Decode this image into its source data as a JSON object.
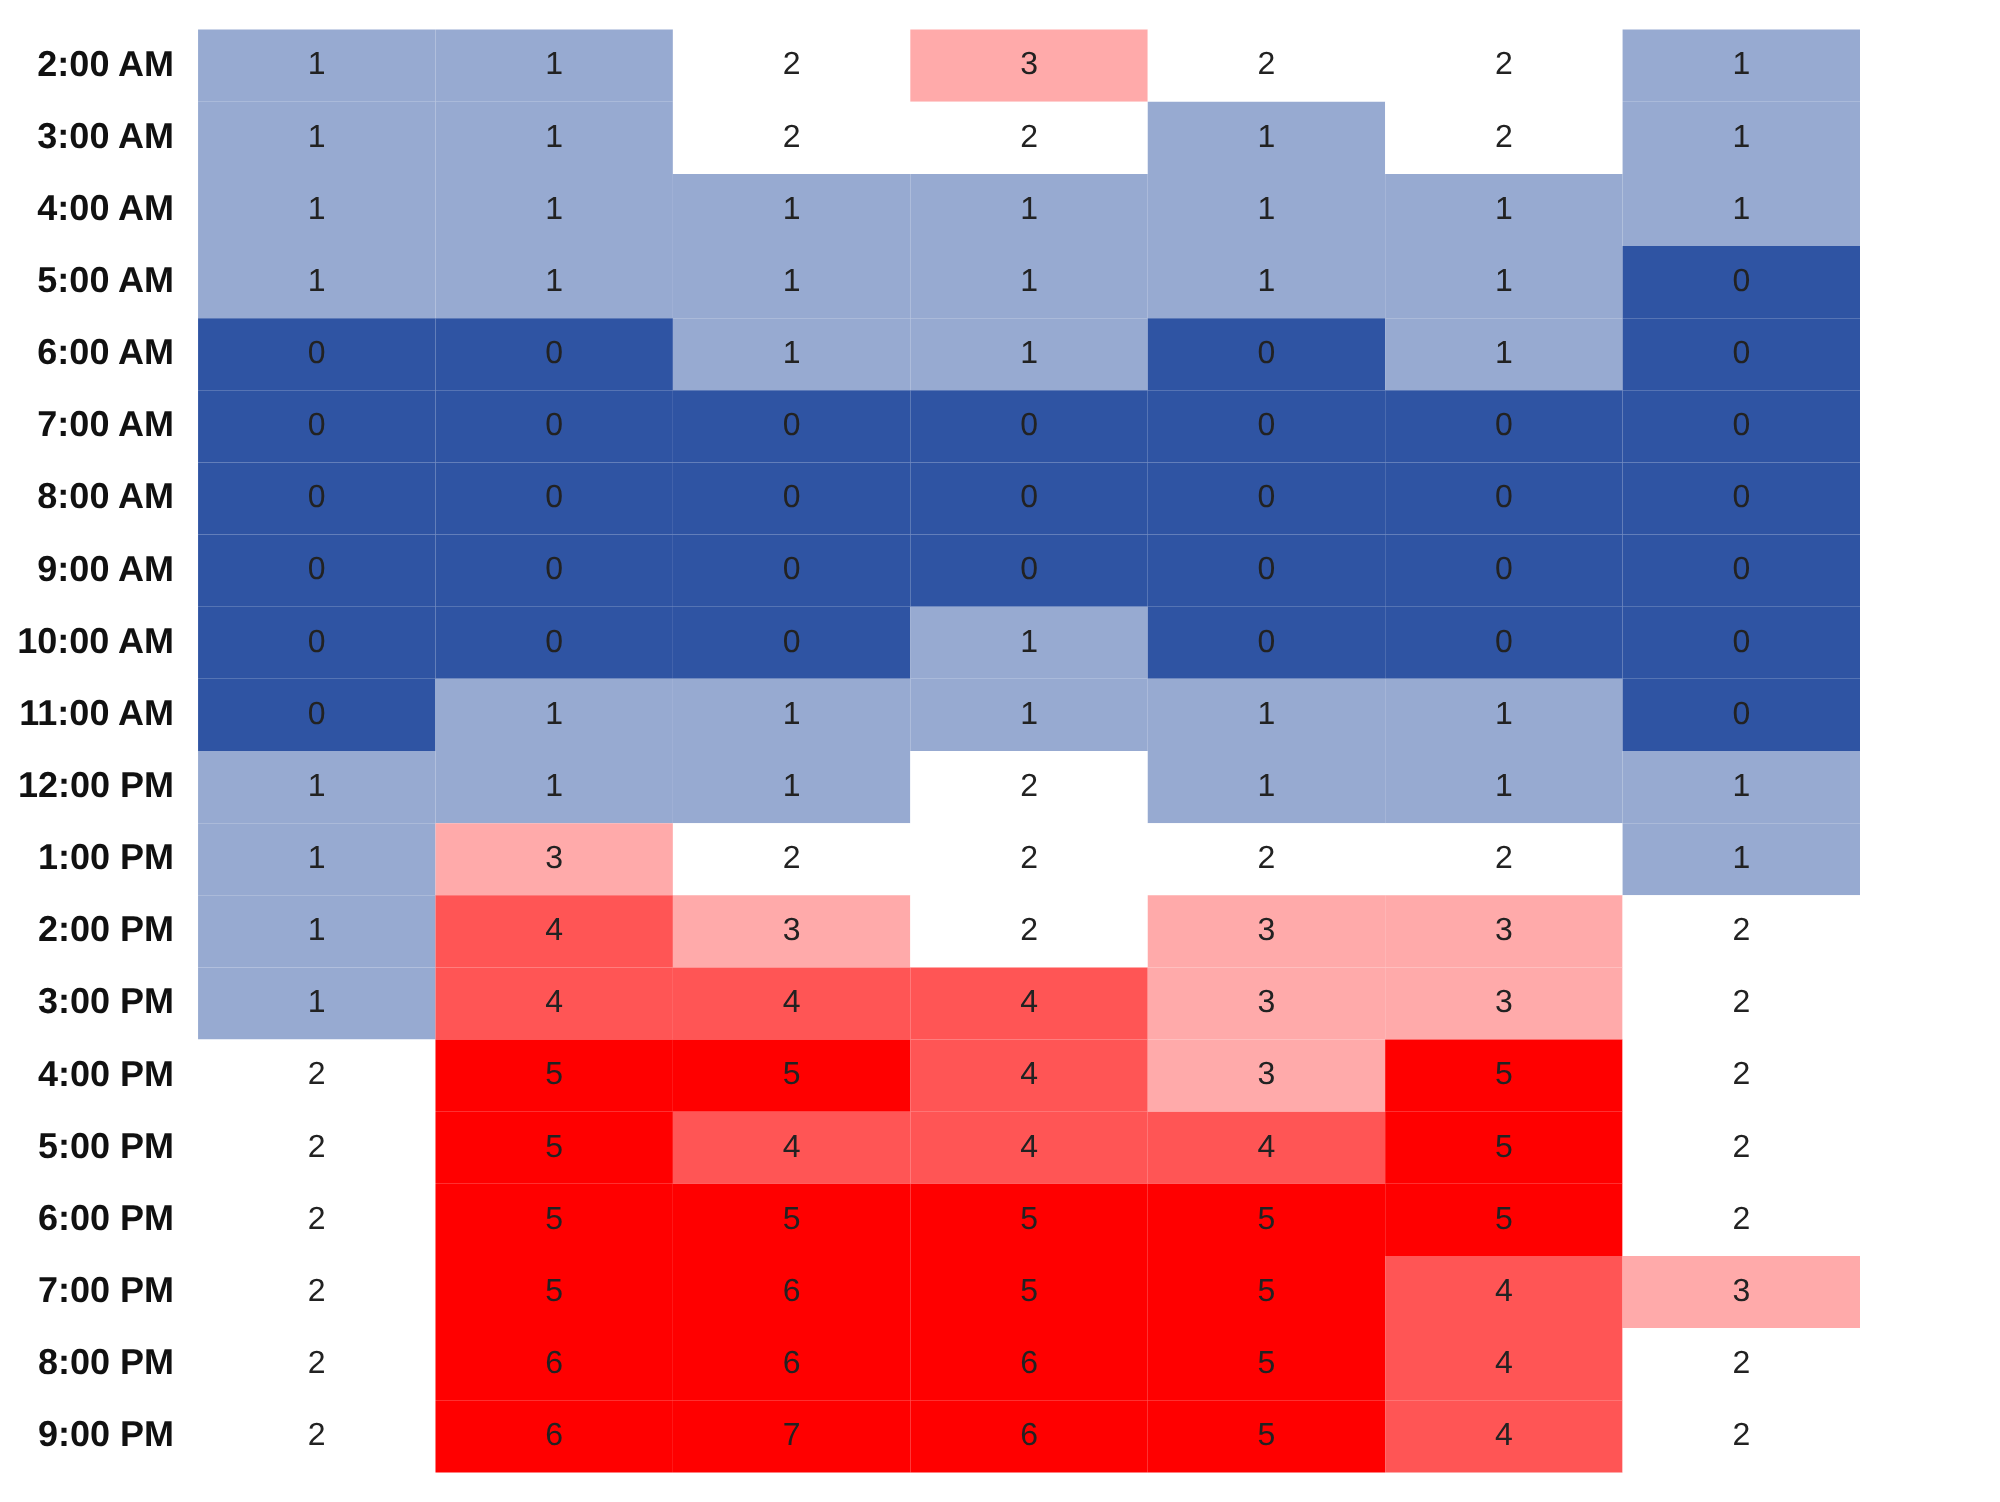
{
  "chart_data": {
    "type": "heatmap",
    "categories": [
      null,
      null,
      null,
      null,
      null,
      null,
      null
    ],
    "y_categories": [
      "2:00 AM",
      "3:00 AM",
      "4:00 AM",
      "5:00 AM",
      "6:00 AM",
      "7:00 AM",
      "8:00 AM",
      "9:00 AM",
      "10:00 AM",
      "11:00 AM",
      "12:00 PM",
      "1:00 PM",
      "2:00 PM",
      "3:00 PM",
      "4:00 PM",
      "5:00 PM",
      "6:00 PM",
      "7:00 PM",
      "8:00 PM",
      "9:00 PM"
    ],
    "cells": [
      [
        1,
        1,
        2,
        3,
        2,
        2,
        1
      ],
      [
        1,
        1,
        2,
        2,
        1,
        2,
        1
      ],
      [
        1,
        1,
        1,
        1,
        1,
        1,
        1
      ],
      [
        1,
        1,
        1,
        1,
        1,
        1,
        0
      ],
      [
        0,
        0,
        1,
        1,
        0,
        1,
        0
      ],
      [
        0,
        0,
        0,
        0,
        0,
        0,
        0
      ],
      [
        0,
        0,
        0,
        0,
        0,
        0,
        0
      ],
      [
        0,
        0,
        0,
        0,
        0,
        0,
        0
      ],
      [
        0,
        0,
        0,
        1,
        0,
        0,
        0
      ],
      [
        0,
        1,
        1,
        1,
        1,
        1,
        0
      ],
      [
        1,
        1,
        1,
        2,
        1,
        1,
        1
      ],
      [
        1,
        3,
        2,
        2,
        2,
        2,
        1
      ],
      [
        1,
        4,
        3,
        2,
        3,
        3,
        2
      ],
      [
        1,
        4,
        4,
        4,
        3,
        3,
        2
      ],
      [
        2,
        5,
        5,
        4,
        3,
        5,
        2
      ],
      [
        2,
        5,
        4,
        4,
        4,
        5,
        2
      ],
      [
        2,
        5,
        5,
        5,
        5,
        5,
        2
      ],
      [
        2,
        5,
        6,
        5,
        5,
        4,
        3
      ],
      [
        2,
        6,
        6,
        6,
        5,
        4,
        2
      ],
      [
        2,
        6,
        7,
        6,
        5,
        4,
        2
      ]
    ],
    "data_labels": true
  }
}
